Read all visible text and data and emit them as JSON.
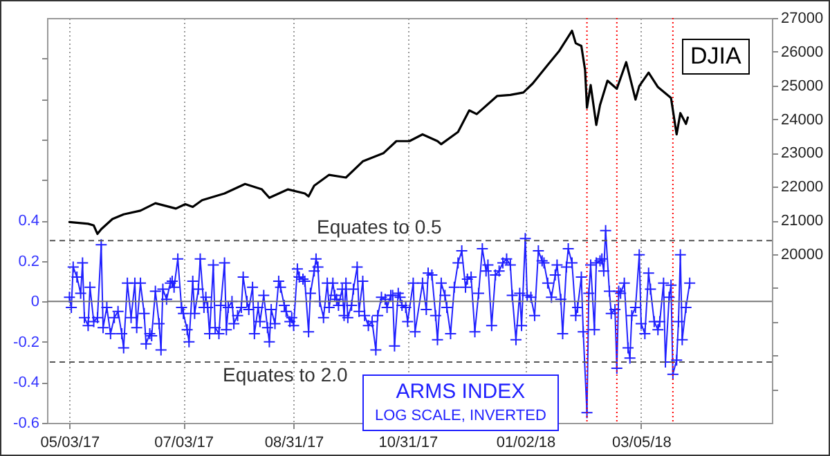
{
  "chart_data": {
    "type": "line",
    "annotations": [
      "LOG SCALE, INVERTED"
    ],
    "xlim": [
      "2017-04-21",
      "2018-05-14"
    ],
    "xticks": [
      {
        "value": "2017-05-03",
        "label": "05/03/17"
      },
      {
        "value": "2017-07-03",
        "label": "07/03/17"
      },
      {
        "value": "2017-08-31",
        "label": "08/31/17"
      },
      {
        "value": "2017-10-31",
        "label": "10/31/17"
      },
      {
        "value": "2018-01-02",
        "label": "01/02/18"
      },
      {
        "value": "2018-03-05",
        "label": "03/05/18"
      }
    ],
    "ylim": [
      -0.6,
      1.4
    ],
    "yticks": [
      -0.6,
      -0.4,
      -0.2,
      0,
      0.2,
      0.4,
      {
        "value": 0.6,
        "label": null
      },
      {
        "value": 0.8,
        "label": null
      },
      {
        "value": 1.0,
        "label": null
      },
      {
        "value": 1.2,
        "label": null
      }
    ],
    "y2lim": [
      15000,
      27000
    ],
    "y2ticks": [
      {
        "value": 16000,
        "label": null
      },
      {
        "value": 17000,
        "label": null
      },
      {
        "value": 18000,
        "label": null
      },
      {
        "value": 19000,
        "label": null
      },
      20000,
      21000,
      22000,
      23000,
      24000,
      25000,
      26000,
      27000
    ],
    "grid": "x",
    "ref_lines": [
      {
        "axis": "y",
        "value": 0.3,
        "label": "Equates to 0.5",
        "color": "#555555",
        "line_style": "dashed"
      },
      {
        "axis": "y",
        "value": -0.3,
        "label": "Equates to 2.0",
        "color": "#555555",
        "line_style": "dashed"
      },
      {
        "axis": "y",
        "value": 0,
        "color": "#777777",
        "line_style": "solid"
      },
      {
        "axis": "x",
        "value": "2018-02-04",
        "color": "#ff0000",
        "line_style": "dotted"
      },
      {
        "axis": "x",
        "value": "2018-02-20",
        "color": "#ff0000",
        "line_style": "dotted"
      },
      {
        "axis": "x",
        "value": "2018-03-22",
        "color": "#ff0000",
        "line_style": "dotted"
      }
    ],
    "series": [
      {
        "name": "DJIA",
        "color": "#000000",
        "axis": "y2",
        "x": [
          "2017-05-03",
          "2017-05-13",
          "2017-05-16",
          "2017-05-18",
          "2017-05-20",
          "2017-05-26",
          "2017-06-01",
          "2017-06-10",
          "2017-06-18",
          "2017-06-29",
          "2017-07-04",
          "2017-07-08",
          "2017-07-13",
          "2017-07-25",
          "2017-08-05",
          "2017-08-14",
          "2017-08-18",
          "2017-08-28",
          "2017-09-06",
          "2017-09-08",
          "2017-09-11",
          "2017-09-19",
          "2017-09-28",
          "2017-10-07",
          "2017-10-18",
          "2017-10-25",
          "2017-11-01",
          "2017-11-08",
          "2017-11-16",
          "2017-11-18",
          "2017-11-27",
          "2017-12-03",
          "2017-12-07",
          "2017-12-18",
          "2017-12-25",
          "2018-01-01",
          "2018-01-06",
          "2018-01-14",
          "2018-01-20",
          "2018-01-27",
          "2018-01-29",
          "2018-02-01",
          "2018-02-03",
          "2018-02-04",
          "2018-02-06",
          "2018-02-09",
          "2018-02-11",
          "2018-02-15",
          "2018-02-20",
          "2018-02-25",
          "2018-03-02",
          "2018-03-04",
          "2018-03-09",
          "2018-03-14",
          "2018-03-21",
          "2018-03-24",
          "2018-03-26",
          "2018-03-29",
          "2018-03-30"
        ],
        "values": [
          20950,
          20900,
          20850,
          20600,
          20740,
          21040,
          21180,
          21290,
          21510,
          21350,
          21480,
          21400,
          21600,
          21800,
          22080,
          21920,
          21670,
          21920,
          21800,
          21710,
          22030,
          22350,
          22270,
          22750,
          22990,
          23350,
          23350,
          23550,
          23350,
          23260,
          23620,
          24260,
          24150,
          24690,
          24720,
          24790,
          25060,
          25610,
          26010,
          26620,
          26250,
          26170,
          25460,
          24340,
          25010,
          23830,
          24420,
          25140,
          24900,
          25690,
          24580,
          24980,
          25380,
          24950,
          24630,
          23550,
          24180,
          23860,
          24050
        ]
      },
      {
        "name": "ARMS INDEX",
        "color": "#2020ff",
        "marker": "cross",
        "x": [
          "2017-05-03",
          "2017-05-04",
          "2017-05-05",
          "2017-05-07",
          "2017-05-09",
          "2017-05-10",
          "2017-05-11",
          "2017-05-13",
          "2017-05-14",
          "2017-05-16",
          "2017-05-18",
          "2017-05-20",
          "2017-05-21",
          "2017-05-23",
          "2017-05-25",
          "2017-05-27",
          "2017-05-29",
          "2017-05-31",
          "2017-06-01",
          "2017-06-03",
          "2017-06-05",
          "2017-06-07",
          "2017-06-08",
          "2017-06-10",
          "2017-06-12",
          "2017-06-13",
          "2017-06-15",
          "2017-06-16",
          "2017-06-18",
          "2017-06-20",
          "2017-06-21",
          "2017-06-22",
          "2017-06-24",
          "2017-06-26",
          "2017-06-27",
          "2017-06-28",
          "2017-06-30",
          "2017-07-02",
          "2017-07-03",
          "2017-07-05",
          "2017-07-06",
          "2017-07-08",
          "2017-07-09",
          "2017-07-11",
          "2017-07-12",
          "2017-07-14",
          "2017-07-15",
          "2017-07-16",
          "2017-07-17",
          "2017-07-19",
          "2017-07-20",
          "2017-07-22",
          "2017-07-23",
          "2017-07-25",
          "2017-07-26",
          "2017-07-27",
          "2017-07-29",
          "2017-07-30",
          "2017-08-01",
          "2017-08-03",
          "2017-08-04",
          "2017-08-06",
          "2017-08-07",
          "2017-08-09",
          "2017-08-10",
          "2017-08-12",
          "2017-08-13",
          "2017-08-15",
          "2017-08-17",
          "2017-08-18",
          "2017-08-19",
          "2017-08-21",
          "2017-08-23",
          "2017-08-24",
          "2017-08-26",
          "2017-08-27",
          "2017-08-29",
          "2017-08-30",
          "2017-08-31",
          "2017-09-02",
          "2017-09-03",
          "2017-09-05",
          "2017-09-06",
          "2017-09-08",
          "2017-09-09",
          "2017-09-11",
          "2017-09-12",
          "2017-09-13",
          "2017-09-14",
          "2017-09-16",
          "2017-09-18",
          "2017-09-19",
          "2017-09-21",
          "2017-09-22",
          "2017-09-23",
          "2017-09-24",
          "2017-09-26",
          "2017-09-27",
          "2017-09-28",
          "2017-09-29",
          "2017-10-01",
          "2017-10-02",
          "2017-10-04",
          "2017-10-05",
          "2017-10-07",
          "2017-10-08",
          "2017-10-10",
          "2017-10-12",
          "2017-10-14",
          "2017-10-15",
          "2017-10-17",
          "2017-10-19",
          "2017-10-20",
          "2017-10-22",
          "2017-10-23",
          "2017-10-24",
          "2017-10-26",
          "2017-10-27",
          "2017-10-28",
          "2017-10-30",
          "2017-10-31",
          "2017-11-03",
          "2017-11-04",
          "2017-11-08",
          "2017-11-10",
          "2017-11-11",
          "2017-11-13",
          "2017-11-15",
          "2017-11-16",
          "2017-11-18",
          "2017-11-20",
          "2017-11-21",
          "2017-11-23",
          "2017-11-25",
          "2017-11-27",
          "2017-11-29",
          "2017-12-01",
          "2017-12-02",
          "2017-12-04",
          "2017-12-06",
          "2017-12-08",
          "2017-12-10",
          "2017-12-12",
          "2017-12-13",
          "2017-12-15",
          "2017-12-17",
          "2017-12-19",
          "2017-12-21",
          "2017-12-23",
          "2017-12-25",
          "2017-12-26",
          "2017-12-28",
          "2017-12-30",
          "2017-12-31",
          "2018-01-02",
          "2018-01-03",
          "2018-01-05",
          "2018-01-07",
          "2018-01-09",
          "2018-01-11",
          "2018-01-12",
          "2018-01-14",
          "2018-01-16",
          "2018-01-18",
          "2018-01-19",
          "2018-01-21",
          "2018-01-22",
          "2018-01-24",
          "2018-01-25",
          "2018-01-27",
          "2018-01-29",
          "2018-01-30",
          "2018-02-01",
          "2018-02-02",
          "2018-02-04",
          "2018-02-05",
          "2018-02-06",
          "2018-02-08",
          "2018-02-09",
          "2018-02-11",
          "2018-02-12",
          "2018-02-13",
          "2018-02-14",
          "2018-02-16",
          "2018-02-17",
          "2018-02-19",
          "2018-02-20",
          "2018-02-21",
          "2018-02-22",
          "2018-02-24",
          "2018-02-26",
          "2018-02-27",
          "2018-02-28",
          "2018-03-02",
          "2018-03-04",
          "2018-03-05",
          "2018-03-07",
          "2018-03-09",
          "2018-03-10",
          "2018-03-12",
          "2018-03-14",
          "2018-03-15",
          "2018-03-17",
          "2018-03-18",
          "2018-03-20",
          "2018-03-21",
          "2018-03-22",
          "2018-03-24",
          "2018-03-25",
          "2018-03-26",
          "2018-03-27",
          "2018-03-29",
          "2018-03-31"
        ],
        "values": [
          0.02,
          -0.03,
          0.17,
          0.12,
          0.04,
          0.19,
          -0.08,
          -0.12,
          0.07,
          -0.1,
          -0.08,
          0.28,
          -0.13,
          -0.03,
          -0.16,
          -0.08,
          -0.05,
          -0.16,
          -0.23,
          0.09,
          -0.08,
          0.09,
          -0.13,
          0.09,
          -0.06,
          -0.21,
          -0.16,
          -0.17,
          0.05,
          -0.11,
          -0.24,
          0.06,
          0.01,
          0.09,
          0.1,
          0.07,
          0.21,
          -0.03,
          -0.06,
          -0.14,
          -0.2,
          0.1,
          -0.06,
          0.06,
          0.21,
          -0.03,
          0.02,
          -0.03,
          -0.16,
          0.18,
          -0.13,
          -0.16,
          -0.02,
          0.19,
          -0.14,
          -0.03,
          0,
          -0.11,
          -0.07,
          -0.03,
          0.12,
          0,
          -0.04,
          0.07,
          -0.16,
          -0.03,
          -0.1,
          0.03,
          -0.13,
          -0.2,
          -0.04,
          -0.11,
          0.1,
          0.07,
          -0.02,
          -0.05,
          -0.1,
          -0.08,
          -0.12,
          0.16,
          0.12,
          0.11,
          0.1,
          -0.15,
          0.04,
          0.15,
          0.21,
          0.17,
          0,
          -0.08,
          0.09,
          -0.03,
          0.09,
          0.03,
          0.01,
          -0.02,
          0.06,
          -0.07,
          0.09,
          -0.08,
          -0.02,
          0.06,
          0.17,
          -0.05,
          0.1,
          -0.07,
          -0.12,
          -0.1,
          -0.24,
          -0.07,
          0.02,
          0.01,
          -0.03,
          0.03,
          0.03,
          -0.22,
          0.04,
          0.02,
          -0.02,
          -0.03,
          -0.1,
          0.09,
          -0.15,
          0.09,
          -0.04,
          0.14,
          0.13,
          -0.07,
          -0.19,
          0.09,
          0.03,
          -0.03,
          -0.16,
          0.07,
          0.19,
          0.25,
          0.07,
          0.11,
          0.12,
          -0.15,
          0.04,
          0.26,
          0.15,
          0.18,
          -0.12,
          0.13,
          0.15,
          0.19,
          0.21,
          0.18,
          0.03,
          -0.19,
          0.04,
          -0.12,
          0.31,
          0.03,
          0.02,
          -0.07,
          0.25,
          0.2,
          0.19,
          0.09,
          0.02,
          0.13,
          0.18,
          0.01,
          -0.16,
          0.17,
          0.26,
          0.19,
          -0.07,
          -0.03,
          0.12,
          -0.15,
          -0.55,
          0.04,
          0.18,
          -0.14,
          0.19,
          0.2,
          0.21,
          0.15,
          0.35,
          0.05,
          -0.06,
          -0.04,
          -0.33,
          0.05,
          0.04,
          0.09,
          -0.23,
          -0.28,
          -0.07,
          -0.03,
          0.23,
          -0.11,
          -0.16,
          0.14,
          0.06,
          -0.1,
          -0.14,
          -0.1,
          0.09,
          -0.3,
          0.02,
          0.08,
          -0.36,
          -0.29,
          -0.1,
          0.23,
          -0.19,
          -0.03,
          0.09
        ]
      }
    ]
  }
}
